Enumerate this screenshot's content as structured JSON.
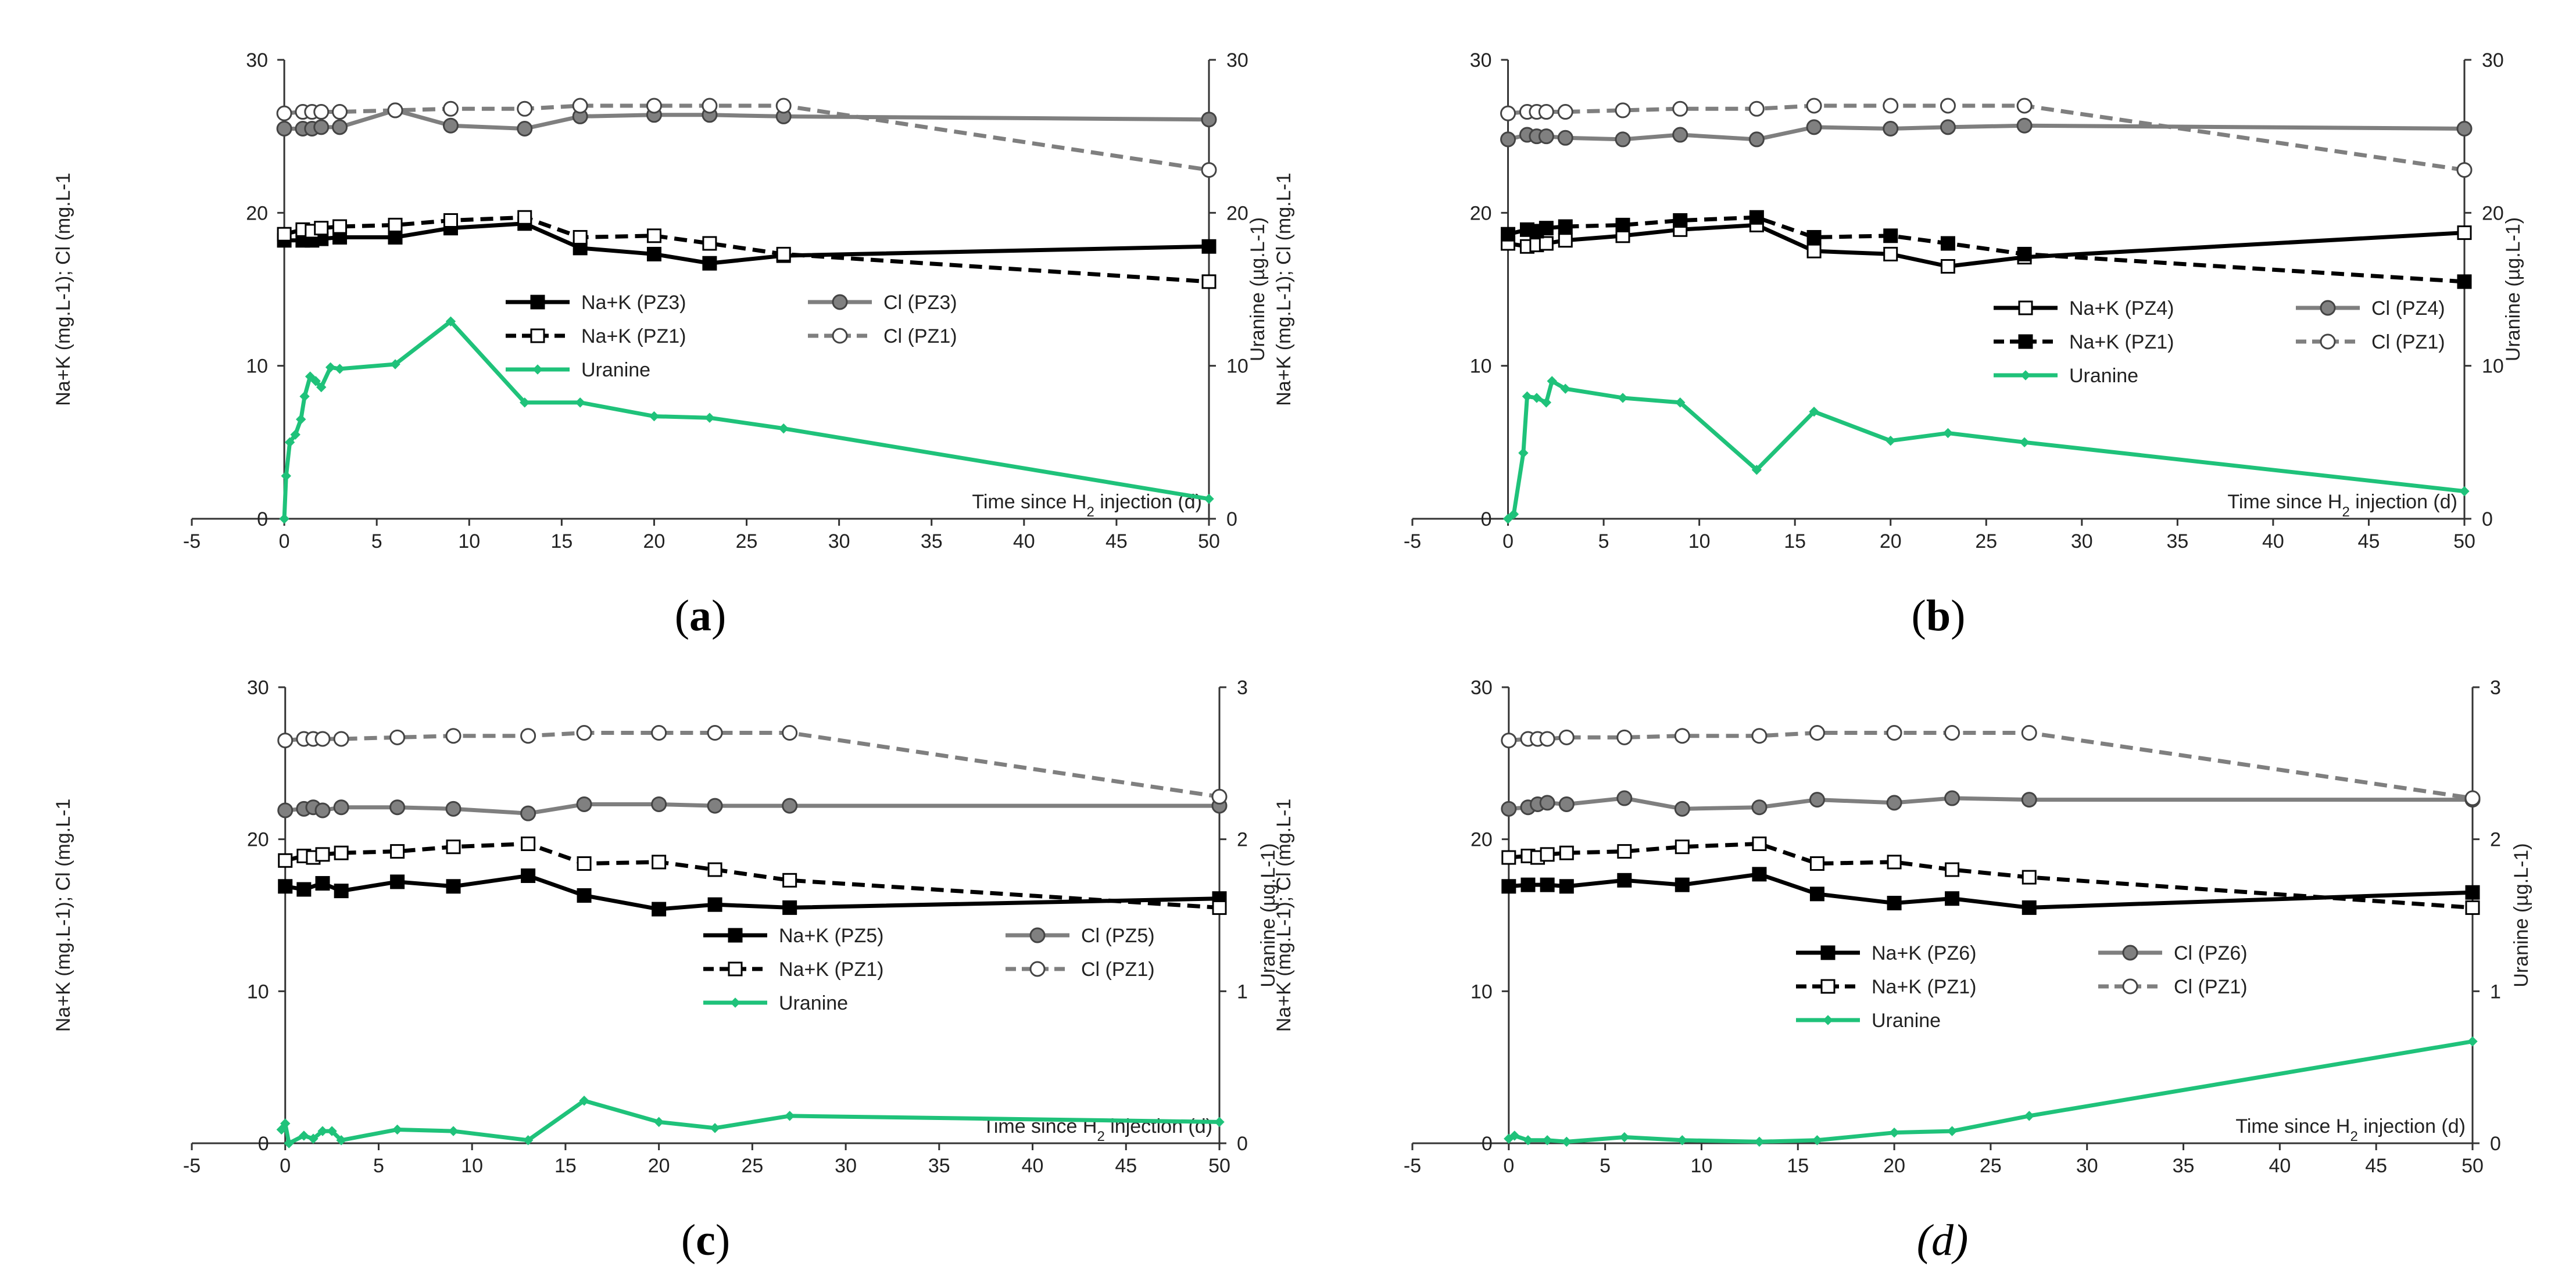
{
  "colors": {
    "black": "#000000",
    "grey": "#7f7f7f",
    "green": "#1fc27a",
    "open_fill": "#ffffff",
    "grey_marker_fill": "#808080"
  },
  "chart_data": [
    {
      "type": "line",
      "caption": "(a)",
      "caption_letter": "a",
      "caption_bold": true,
      "caption_italic": false,
      "xlabel_prefix": "Time since H",
      "xlabel_sub": "2",
      "xlabel_suffix": " injection (d)",
      "ylabel_left": "Na+K (mg.L-1); Cl (mg.L-1",
      "ylabel_right": "Uranine (µg.L-1)",
      "xlim": [
        -5,
        50
      ],
      "xticks": [
        -5,
        0,
        5,
        10,
        15,
        20,
        25,
        30,
        35,
        40,
        45,
        50
      ],
      "ylim_left": [
        0,
        30
      ],
      "yticks_left": [
        0,
        10,
        20,
        30
      ],
      "ylim_right": [
        0,
        30
      ],
      "yticks_right": [
        0,
        10,
        20,
        30
      ],
      "legend": [
        {
          "label": "Na+K (PZ3)",
          "series": 0
        },
        {
          "label": "Cl (PZ3)",
          "series": 1
        },
        {
          "label": "Na+K (PZ1)",
          "series": 2
        },
        {
          "label": "Cl (PZ1)",
          "series": 3
        },
        {
          "label": "Uranine",
          "series": 4
        }
      ],
      "series": [
        {
          "name": "Na+K (PZ3)",
          "style": "black-solid-square-filled",
          "axis": "left",
          "x": [
            0,
            1,
            1.5,
            2,
            3,
            6,
            9,
            13,
            16,
            20,
            23,
            27,
            50
          ],
          "y": [
            18.2,
            18.2,
            18.2,
            18.3,
            18.4,
            18.4,
            19.0,
            19.3,
            17.7,
            17.3,
            16.7,
            17.2,
            17.8
          ]
        },
        {
          "name": "Cl (PZ3)",
          "style": "grey-solid-circle-filled",
          "axis": "left",
          "x": [
            0,
            1,
            1.5,
            2,
            3,
            6,
            9,
            13,
            16,
            20,
            23,
            27,
            50
          ],
          "y": [
            25.5,
            25.5,
            25.5,
            25.6,
            25.6,
            26.7,
            25.7,
            25.5,
            26.3,
            26.4,
            26.4,
            26.3,
            26.1
          ]
        },
        {
          "name": "Na+K (PZ1)",
          "style": "black-dashed-square-open",
          "axis": "left",
          "x": [
            0,
            1,
            1.5,
            2,
            3,
            6,
            9,
            13,
            16,
            20,
            23,
            27,
            50
          ],
          "y": [
            18.6,
            18.9,
            18.8,
            19.0,
            19.1,
            19.2,
            19.5,
            19.7,
            18.4,
            18.5,
            18.0,
            17.3,
            15.5
          ]
        },
        {
          "name": "Cl (PZ1)",
          "style": "grey-dashed-circle-open",
          "axis": "left",
          "x": [
            0,
            1,
            1.5,
            2,
            3,
            6,
            9,
            13,
            16,
            20,
            23,
            27,
            50
          ],
          "y": [
            26.5,
            26.6,
            26.6,
            26.6,
            26.6,
            26.7,
            26.8,
            26.8,
            27.0,
            27.0,
            27.0,
            27.0,
            22.8
          ]
        },
        {
          "name": "Uranine",
          "style": "green-solid-diamond",
          "axis": "right",
          "x": [
            0,
            0.1,
            0.3,
            0.6,
            0.9,
            1.1,
            1.4,
            1.7,
            2.0,
            2.5,
            3,
            6,
            9,
            13,
            16,
            20,
            23,
            27,
            50
          ],
          "y": [
            0,
            2.8,
            5.0,
            5.5,
            6.5,
            8.0,
            9.3,
            9.0,
            8.6,
            9.9,
            9.8,
            10.1,
            12.9,
            7.6,
            7.6,
            6.7,
            6.6,
            5.9,
            1.3
          ]
        }
      ]
    },
    {
      "type": "line",
      "caption": "(b)",
      "caption_letter": "b",
      "caption_bold": true,
      "caption_italic": false,
      "xlabel_prefix": "Time since H",
      "xlabel_sub": "2",
      "xlabel_suffix": " injection (d)",
      "ylabel_left": "Na+K (mg.L-1); Cl (mg.L-1",
      "ylabel_right": "Uranine (µg.L-1)",
      "xlim": [
        -5,
        50
      ],
      "xticks": [
        -5,
        0,
        5,
        10,
        15,
        20,
        25,
        30,
        35,
        40,
        45,
        50
      ],
      "ylim_left": [
        0,
        30
      ],
      "yticks_left": [
        0,
        10,
        20,
        30
      ],
      "ylim_right": [
        0,
        30
      ],
      "yticks_right": [
        0,
        10,
        20,
        30
      ],
      "legend": [
        {
          "label": "Na+K (PZ4)",
          "series": 0
        },
        {
          "label": "Cl (PZ4)",
          "series": 1
        },
        {
          "label": "Na+K (PZ1)",
          "series": 2
        },
        {
          "label": "Cl (PZ1)",
          "series": 3
        },
        {
          "label": "Uranine",
          "series": 4
        }
      ],
      "series": [
        {
          "name": "Na+K (PZ4)",
          "style": "black-solid-square-open",
          "axis": "left",
          "x": [
            0,
            1,
            1.5,
            2,
            3,
            6,
            9,
            13,
            16,
            20,
            23,
            27,
            50
          ],
          "y": [
            18.0,
            17.8,
            17.9,
            18.0,
            18.2,
            18.5,
            18.9,
            19.2,
            17.5,
            17.3,
            16.5,
            17.1,
            18.7
          ]
        },
        {
          "name": "Cl (PZ4)",
          "style": "grey-solid-circle-filled",
          "axis": "left",
          "x": [
            0,
            1,
            1.5,
            2,
            3,
            6,
            9,
            13,
            16,
            20,
            23,
            27,
            50
          ],
          "y": [
            24.8,
            25.1,
            25.0,
            25.0,
            24.9,
            24.8,
            25.1,
            24.8,
            25.6,
            25.5,
            25.6,
            25.7,
            25.5
          ]
        },
        {
          "name": "Na+K (PZ1)",
          "style": "black-dashed-square-filled",
          "axis": "left",
          "x": [
            0,
            1,
            1.5,
            2,
            3,
            6,
            9,
            13,
            16,
            20,
            23,
            27,
            50
          ],
          "y": [
            18.6,
            18.9,
            18.8,
            19.0,
            19.1,
            19.2,
            19.5,
            19.7,
            18.4,
            18.5,
            18.0,
            17.3,
            15.5
          ]
        },
        {
          "name": "Cl (PZ1)",
          "style": "grey-dashed-circle-open",
          "axis": "left",
          "x": [
            0,
            1,
            1.5,
            2,
            3,
            6,
            9,
            13,
            16,
            20,
            23,
            27,
            50
          ],
          "y": [
            26.5,
            26.6,
            26.6,
            26.6,
            26.6,
            26.7,
            26.8,
            26.8,
            27.0,
            27.0,
            27.0,
            27.0,
            22.8
          ]
        },
        {
          "name": "Uranine",
          "style": "green-solid-diamond",
          "axis": "right",
          "x": [
            0,
            0.3,
            0.8,
            1.0,
            1.5,
            2.0,
            2.3,
            3,
            6,
            9,
            13,
            16,
            20,
            23,
            27,
            50
          ],
          "y": [
            0,
            0.3,
            4.3,
            8.0,
            7.9,
            7.6,
            9.0,
            8.5,
            7.9,
            7.6,
            3.2,
            7.0,
            5.1,
            5.6,
            5.0,
            1.8
          ]
        }
      ]
    },
    {
      "type": "line",
      "caption": "(c)",
      "caption_letter": "c",
      "caption_bold": true,
      "caption_italic": false,
      "xlabel_prefix": "Time since H",
      "xlabel_sub": "2",
      "xlabel_suffix": " injection (d)",
      "ylabel_left": "Na+K (mg.L-1); Cl (mg.L-1",
      "ylabel_right": "Uranine (µg.L-1)",
      "xlim": [
        -5,
        50
      ],
      "xticks": [
        -5,
        0,
        5,
        10,
        15,
        20,
        25,
        30,
        35,
        40,
        45,
        50
      ],
      "ylim_left": [
        0,
        30
      ],
      "yticks_left": [
        0,
        10,
        20,
        30
      ],
      "ylim_right": [
        0,
        3
      ],
      "yticks_right": [
        0,
        1,
        2,
        3
      ],
      "legend": [
        {
          "label": "Na+K (PZ5)",
          "series": 0
        },
        {
          "label": "Cl (PZ5)",
          "series": 1
        },
        {
          "label": "Na+K (PZ1)",
          "series": 2
        },
        {
          "label": "Cl (PZ1)",
          "series": 3
        },
        {
          "label": "Uranine",
          "series": 4
        }
      ],
      "series": [
        {
          "name": "Na+K (PZ5)",
          "style": "black-solid-square-filled",
          "axis": "left",
          "x": [
            0,
            1,
            2,
            3,
            6,
            9,
            13,
            16,
            20,
            23,
            27,
            50
          ],
          "y": [
            16.9,
            16.7,
            17.1,
            16.6,
            17.2,
            16.9,
            17.6,
            16.3,
            15.4,
            15.7,
            15.5,
            16.1
          ]
        },
        {
          "name": "Cl (PZ5)",
          "style": "grey-solid-circle-filled",
          "axis": "left",
          "x": [
            0,
            1,
            1.5,
            2,
            3,
            6,
            9,
            13,
            16,
            20,
            23,
            27,
            50
          ],
          "y": [
            21.9,
            22.0,
            22.1,
            21.9,
            22.1,
            22.1,
            22.0,
            21.7,
            22.3,
            22.3,
            22.2,
            22.2,
            22.2
          ]
        },
        {
          "name": "Na+K (PZ1)",
          "style": "black-dashed-square-open",
          "axis": "left",
          "x": [
            0,
            1,
            1.5,
            2,
            3,
            6,
            9,
            13,
            16,
            20,
            23,
            27,
            50
          ],
          "y": [
            18.6,
            18.9,
            18.8,
            19.0,
            19.1,
            19.2,
            19.5,
            19.7,
            18.4,
            18.5,
            18.0,
            17.3,
            15.5
          ]
        },
        {
          "name": "Cl (PZ1)",
          "style": "grey-dashed-circle-open",
          "axis": "left",
          "x": [
            0,
            1,
            1.5,
            2,
            3,
            6,
            9,
            13,
            16,
            20,
            23,
            27,
            50
          ],
          "y": [
            26.5,
            26.6,
            26.6,
            26.6,
            26.6,
            26.7,
            26.8,
            26.8,
            27.0,
            27.0,
            27.0,
            27.0,
            22.8
          ]
        },
        {
          "name": "Uranine",
          "style": "green-solid-diamond",
          "axis": "right",
          "x": [
            -0.2,
            0,
            0.2,
            1,
            1.5,
            2,
            2.5,
            3,
            6,
            9,
            13,
            16,
            20,
            23,
            27,
            50
          ],
          "y": [
            0.09,
            0.13,
            0.0,
            0.05,
            0.03,
            0.08,
            0.08,
            0.02,
            0.09,
            0.08,
            0.02,
            0.28,
            0.14,
            0.1,
            0.18,
            0.14
          ]
        }
      ]
    },
    {
      "type": "line",
      "caption": "(d)",
      "caption_letter": "d",
      "caption_bold": false,
      "caption_italic": true,
      "xlabel_prefix": "Time since H",
      "xlabel_sub": "2",
      "xlabel_suffix": " injection (d)",
      "ylabel_left": "Na+K (mg.L-1); Cl (mg.L-1",
      "ylabel_right": "Uranine (µg.L-1)",
      "xlim": [
        -5,
        50
      ],
      "xticks": [
        -5,
        0,
        5,
        10,
        15,
        20,
        25,
        30,
        35,
        40,
        45,
        50
      ],
      "ylim_left": [
        0,
        30
      ],
      "yticks_left": [
        0,
        10,
        20,
        30
      ],
      "ylim_right": [
        0,
        3
      ],
      "yticks_right": [
        0,
        1,
        2,
        3
      ],
      "legend": [
        {
          "label": "Na+K (PZ6)",
          "series": 0
        },
        {
          "label": "Cl (PZ6)",
          "series": 1
        },
        {
          "label": "Na+K (PZ1)",
          "series": 2
        },
        {
          "label": "Cl (PZ1)",
          "series": 3
        },
        {
          "label": "Uranine",
          "series": 4
        }
      ],
      "series": [
        {
          "name": "Na+K (PZ6)",
          "style": "black-solid-square-filled",
          "axis": "left",
          "x": [
            0,
            1,
            2,
            3,
            6,
            9,
            13,
            16,
            20,
            23,
            27,
            50
          ],
          "y": [
            16.9,
            17.0,
            17.0,
            16.9,
            17.3,
            17.0,
            17.7,
            16.4,
            15.8,
            16.1,
            15.5,
            16.5
          ]
        },
        {
          "name": "Cl (PZ6)",
          "style": "grey-solid-circle-filled",
          "axis": "left",
          "x": [
            0,
            1,
            1.5,
            2,
            3,
            6,
            9,
            13,
            16,
            20,
            23,
            27,
            50
          ],
          "y": [
            22.0,
            22.1,
            22.3,
            22.4,
            22.3,
            22.7,
            22.0,
            22.1,
            22.6,
            22.4,
            22.7,
            22.6,
            22.6
          ]
        },
        {
          "name": "Na+K (PZ1)",
          "style": "black-dashed-square-open",
          "axis": "left",
          "x": [
            0,
            1,
            1.5,
            2,
            3,
            6,
            9,
            13,
            16,
            20,
            23,
            27,
            50
          ],
          "y": [
            18.8,
            18.9,
            18.8,
            19.0,
            19.1,
            19.2,
            19.5,
            19.7,
            18.4,
            18.5,
            18.0,
            17.5,
            15.5
          ]
        },
        {
          "name": "Cl (PZ1)",
          "style": "grey-dashed-circle-open",
          "axis": "left",
          "x": [
            0,
            1,
            1.5,
            2,
            3,
            6,
            9,
            13,
            16,
            20,
            23,
            27,
            50
          ],
          "y": [
            26.5,
            26.6,
            26.6,
            26.6,
            26.7,
            26.7,
            26.8,
            26.8,
            27.0,
            27.0,
            27.0,
            27.0,
            22.7
          ]
        },
        {
          "name": "Uranine",
          "style": "green-solid-diamond",
          "axis": "right",
          "x": [
            0,
            0.3,
            1,
            2,
            3,
            6,
            9,
            13,
            16,
            20,
            23,
            27,
            50
          ],
          "y": [
            0.03,
            0.05,
            0.02,
            0.02,
            0.01,
            0.04,
            0.02,
            0.01,
            0.02,
            0.07,
            0.08,
            0.18,
            0.67
          ]
        }
      ]
    }
  ]
}
